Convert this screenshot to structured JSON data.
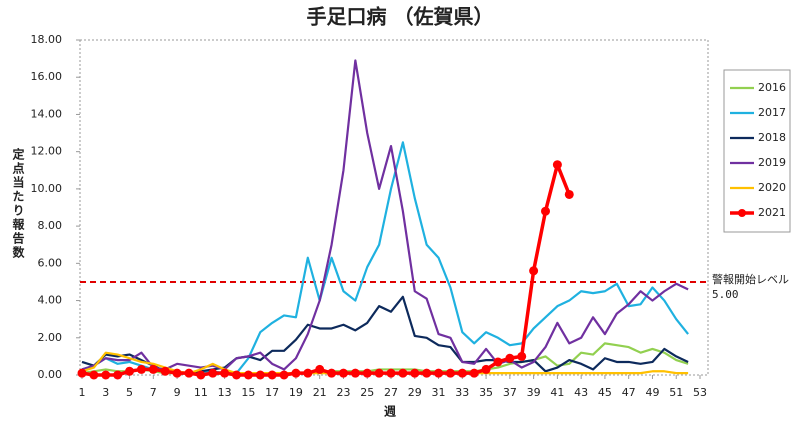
{
  "chart_data": {
    "type": "line",
    "title": "手足口病 （佐賀県）",
    "x_label": "週",
    "y_label": "定点当たり報告数",
    "x": [
      1,
      2,
      3,
      4,
      5,
      6,
      7,
      8,
      9,
      10,
      11,
      12,
      13,
      14,
      15,
      16,
      17,
      18,
      19,
      20,
      21,
      22,
      23,
      24,
      25,
      26,
      27,
      28,
      29,
      30,
      31,
      32,
      33,
      34,
      35,
      36,
      37,
      38,
      39,
      40,
      41,
      42,
      43,
      44,
      45,
      46,
      47,
      48,
      49,
      50,
      51,
      52
    ],
    "xlim": [
      1,
      53
    ],
    "xticks": [
      1,
      3,
      5,
      7,
      9,
      11,
      13,
      15,
      17,
      19,
      21,
      23,
      25,
      27,
      29,
      31,
      33,
      35,
      37,
      39,
      41,
      43,
      45,
      47,
      49,
      51,
      53
    ],
    "ylim": [
      0,
      18
    ],
    "yticks": [
      {
        "value": 0,
        "label": "0.00"
      },
      {
        "value": 2,
        "label": "2.00"
      },
      {
        "value": 4,
        "label": "4.00"
      },
      {
        "value": 6,
        "label": "6.00"
      },
      {
        "value": 8,
        "label": "8.00"
      },
      {
        "value": 10,
        "label": "10.00"
      },
      {
        "value": 12,
        "label": "12.00"
      },
      {
        "value": 14,
        "label": "14.00"
      },
      {
        "value": 16,
        "label": "16.00"
      },
      {
        "value": 18,
        "label": "18.00"
      }
    ],
    "threshold": {
      "value": 5,
      "label": "5.00",
      "text": "警報開始レベル",
      "color": "#e00000"
    },
    "series": [
      {
        "name": "2016",
        "color": "#92d050",
        "values": [
          0.1,
          0.2,
          0.3,
          0.2,
          0.2,
          0.3,
          0.2,
          0.1,
          0.1,
          0.1,
          0.1,
          0.1,
          0.1,
          0.1,
          0.1,
          0.1,
          0.1,
          0.1,
          0.1,
          0.1,
          0.2,
          0.2,
          0.2,
          0.2,
          0.2,
          0.3,
          0.3,
          0.3,
          0.3,
          0.2,
          0.2,
          0.2,
          0.2,
          0.2,
          0.3,
          0.4,
          0.6,
          0.7,
          0.8,
          1.0,
          0.5,
          0.6,
          1.2,
          1.1,
          1.7,
          1.6,
          1.5,
          1.2,
          1.4,
          1.2,
          0.8,
          0.6
        ]
      },
      {
        "name": "2017",
        "color": "#1fb1e0",
        "values": [
          0.3,
          0.5,
          0.9,
          0.6,
          0.7,
          0.5,
          0.3,
          0.2,
          0.1,
          0.1,
          0.1,
          0.2,
          0.1,
          0.1,
          0.9,
          2.3,
          2.8,
          3.2,
          3.1,
          6.3,
          4.0,
          6.3,
          4.5,
          4.0,
          5.8,
          7.0,
          10.0,
          12.5,
          9.5,
          7.0,
          6.3,
          4.7,
          2.3,
          1.7,
          2.3,
          2.0,
          1.6,
          1.7,
          2.5,
          3.1,
          3.7,
          4.0,
          4.5,
          4.4,
          4.5,
          4.9,
          3.7,
          3.8,
          4.7,
          4.0,
          3.0,
          2.2
        ]
      },
      {
        "name": "2018",
        "color": "#0d2a5c",
        "values": [
          0.7,
          0.5,
          1.1,
          1.0,
          1.1,
          0.8,
          0.5,
          0.2,
          0.1,
          0.1,
          0.2,
          0.3,
          0.4,
          0.9,
          1.0,
          0.8,
          1.3,
          1.3,
          1.9,
          2.7,
          2.5,
          2.5,
          2.7,
          2.4,
          2.8,
          3.7,
          3.4,
          4.2,
          2.1,
          2.0,
          1.6,
          1.5,
          0.7,
          0.7,
          0.8,
          0.8,
          0.7,
          0.7,
          0.8,
          0.2,
          0.4,
          0.8,
          0.6,
          0.3,
          0.9,
          0.7,
          0.7,
          0.6,
          0.7,
          1.4,
          1.0,
          0.7
        ]
      },
      {
        "name": "2019",
        "color": "#7030a0",
        "values": [
          0.3,
          0.5,
          0.9,
          0.8,
          0.8,
          1.2,
          0.4,
          0.3,
          0.6,
          0.5,
          0.4,
          0.5,
          0.3,
          0.9,
          1.0,
          1.2,
          0.6,
          0.3,
          0.9,
          2.2,
          4.0,
          7.0,
          11.0,
          16.9,
          13.0,
          10.0,
          12.3,
          8.8,
          4.5,
          4.1,
          2.2,
          2.0,
          0.7,
          0.6,
          1.4,
          0.6,
          0.8,
          0.4,
          0.7,
          1.5,
          2.8,
          1.7,
          2.0,
          3.1,
          2.2,
          3.3,
          3.8,
          4.5,
          4.0,
          4.5,
          4.9,
          4.6
        ]
      },
      {
        "name": "2020",
        "color": "#ffc000",
        "values": [
          0.2,
          0.4,
          1.2,
          1.1,
          0.9,
          0.7,
          0.6,
          0.4,
          0.2,
          0.1,
          0.3,
          0.6,
          0.3,
          0.1,
          0.1,
          0.1,
          0.1,
          0.1,
          0.1,
          0.1,
          0.1,
          0.1,
          0.1,
          0.1,
          0.1,
          0.1,
          0.1,
          0.1,
          0.1,
          0.1,
          0.1,
          0.1,
          0.1,
          0.1,
          0.1,
          0.1,
          0.1,
          0.1,
          0.1,
          0.1,
          0.1,
          0.1,
          0.1,
          0.1,
          0.1,
          0.1,
          0.1,
          0.1,
          0.2,
          0.2,
          0.1,
          0.1
        ]
      },
      {
        "name": "2021",
        "color": "#ff0000",
        "markers": true,
        "values": [
          0.1,
          0.0,
          0.0,
          0.0,
          0.2,
          0.3,
          0.3,
          0.2,
          0.1,
          0.1,
          0.0,
          0.1,
          0.1,
          0.0,
          0.0,
          0.0,
          0.0,
          0.0,
          0.1,
          0.1,
          0.3,
          0.1,
          0.1,
          0.1,
          0.1,
          0.1,
          0.1,
          0.1,
          0.1,
          0.1,
          0.1,
          0.1,
          0.1,
          0.1,
          0.3,
          0.7,
          0.9,
          1.0,
          5.6,
          8.8,
          11.3,
          9.7,
          null,
          null,
          null,
          null,
          null,
          null,
          null,
          null,
          null,
          null
        ]
      }
    ]
  }
}
